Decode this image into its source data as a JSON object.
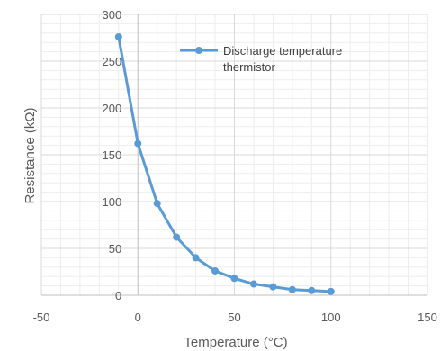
{
  "chart_data": {
    "type": "scatter",
    "xlabel": "Temperature (°C)",
    "ylabel": "Resistance (kΩ)",
    "xlim": [
      -50,
      150
    ],
    "ylim": [
      0,
      300
    ],
    "x_ticks": [
      "-50",
      "0",
      "50",
      "100",
      "150"
    ],
    "y_ticks": [
      "0",
      "50",
      "100",
      "150",
      "200",
      "250",
      "300"
    ],
    "grid": true,
    "legend_position": "top-right",
    "series": [
      {
        "name": "Discharge temperature thermistor",
        "color": "#5b9bd5",
        "x": [
          -10,
          0,
          10,
          20,
          30,
          40,
          50,
          60,
          70,
          80,
          90,
          100
        ],
        "y": [
          276,
          162,
          98,
          62,
          40,
          26,
          18,
          12,
          9,
          6,
          5,
          4
        ]
      }
    ]
  }
}
